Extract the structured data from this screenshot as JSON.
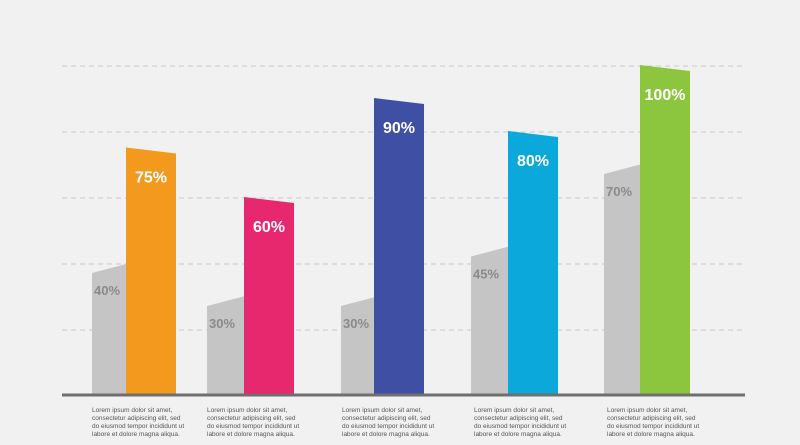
{
  "chart_data": {
    "type": "bar",
    "categories": [
      "",
      "",
      "",
      "",
      ""
    ],
    "series": [
      {
        "values": [
          40,
          30,
          30,
          45,
          70
        ],
        "labels": [
          "40%",
          "30%",
          "30%",
          "45%",
          "70%"
        ],
        "color": "#c5c5c5"
      },
      {
        "values": [
          75,
          60,
          90,
          80,
          100
        ],
        "labels": [
          "75%",
          "60%",
          "90%",
          "80%",
          "100%"
        ],
        "colors": [
          "#f39a1e",
          "#e8286e",
          "#3f4fa3",
          "#0ba8dc",
          "#8cc63f"
        ]
      }
    ],
    "ylim": [
      0,
      100
    ],
    "grid": true,
    "legend": "none",
    "captions": [
      [
        "Lorem ipsum dolor sit amet,",
        "consectetur adipiscing elit, sed",
        "do eiusmod tempor incididunt ut",
        "labore et dolore magna aliqua."
      ],
      [
        "Lorem ipsum dolor sit amet,",
        "consectetur adipiscing elit, sed",
        "do eiusmod tempor incididunt ut",
        "labore et dolore magna aliqua."
      ],
      [
        "Lorem ipsum dolor sit amet,",
        "consectetur adipiscing elit, sed",
        "do eiusmod tempor incididunt ut",
        "labore et dolore magna aliqua."
      ],
      [
        "Lorem ipsum dolor sit amet,",
        "consectetur adipiscing elit, sed",
        "do eiusmod tempor incididunt ut",
        "labore et dolore magna aliqua."
      ],
      [
        "Lorem ipsum dolor sit amet,",
        "consectetur adipiscing elit, sed",
        "do eiusmod tempor incididunt ut",
        "labore et dolore magna aliqua."
      ]
    ]
  }
}
